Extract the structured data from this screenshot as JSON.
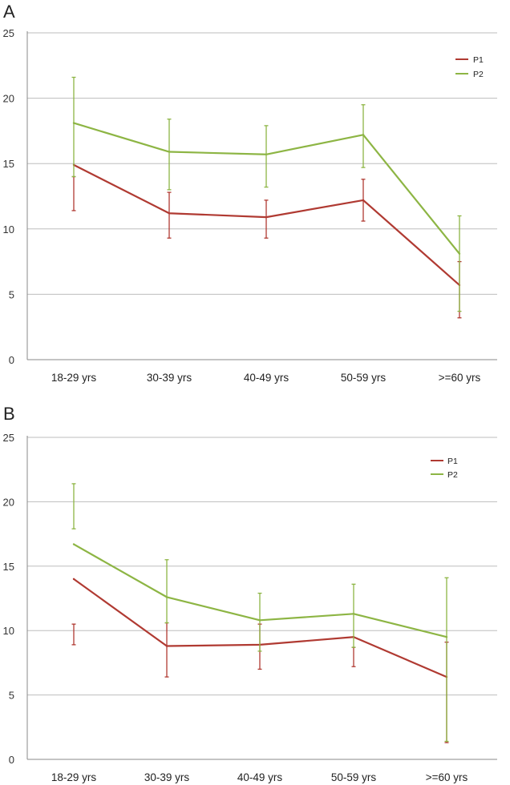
{
  "panels": [
    {
      "label": "A"
    },
    {
      "label": "B"
    }
  ],
  "colors": {
    "P1": "#b03a32",
    "P2": "#8db544",
    "grid": "#bdbdbd",
    "axis": "#8a8a8a"
  },
  "chart_data": [
    {
      "type": "line",
      "panel": "A",
      "categories": [
        "18-29 yrs",
        "30-39 yrs",
        "40-49 yrs",
        "50-59 yrs",
        ">=60 yrs"
      ],
      "ylim": [
        0,
        25
      ],
      "yticks": [
        0,
        5,
        10,
        15,
        20,
        25
      ],
      "grid": true,
      "legend": "top-right",
      "series": [
        {
          "name": "P1",
          "values": [
            14.9,
            11.2,
            10.9,
            12.2,
            5.7
          ],
          "err_low": [
            11.4,
            9.3,
            9.3,
            10.6,
            3.2
          ],
          "err_high": [
            14.0,
            12.8,
            12.2,
            13.8,
            7.5
          ]
        },
        {
          "name": "P2",
          "values": [
            18.1,
            15.9,
            15.7,
            17.2,
            8.1
          ],
          "err_low": [
            14.0,
            13.0,
            13.2,
            14.7,
            3.7
          ],
          "err_high": [
            21.6,
            18.4,
            17.9,
            19.5,
            11.0
          ]
        }
      ]
    },
    {
      "type": "line",
      "panel": "B",
      "categories": [
        "18-29 yrs",
        "30-39 yrs",
        "40-49 yrs",
        "50-59 yrs",
        ">=60 yrs"
      ],
      "ylim": [
        0,
        25
      ],
      "yticks": [
        0,
        5,
        10,
        15,
        20,
        25
      ],
      "grid": true,
      "legend": "top-right",
      "series": [
        {
          "name": "P1",
          "values": [
            14.0,
            8.8,
            8.9,
            9.5,
            6.4
          ],
          "err_low": [
            8.9,
            6.4,
            7.0,
            7.2,
            1.3
          ],
          "err_high": [
            10.5,
            10.6,
            10.5,
            8.7,
            9.1
          ]
        },
        {
          "name": "P2",
          "values": [
            16.7,
            12.6,
            10.8,
            11.3,
            9.5
          ],
          "err_low": [
            17.9,
            10.6,
            8.4,
            8.7,
            1.4
          ],
          "err_high": [
            21.4,
            15.5,
            12.9,
            13.6,
            14.1
          ]
        }
      ]
    }
  ]
}
